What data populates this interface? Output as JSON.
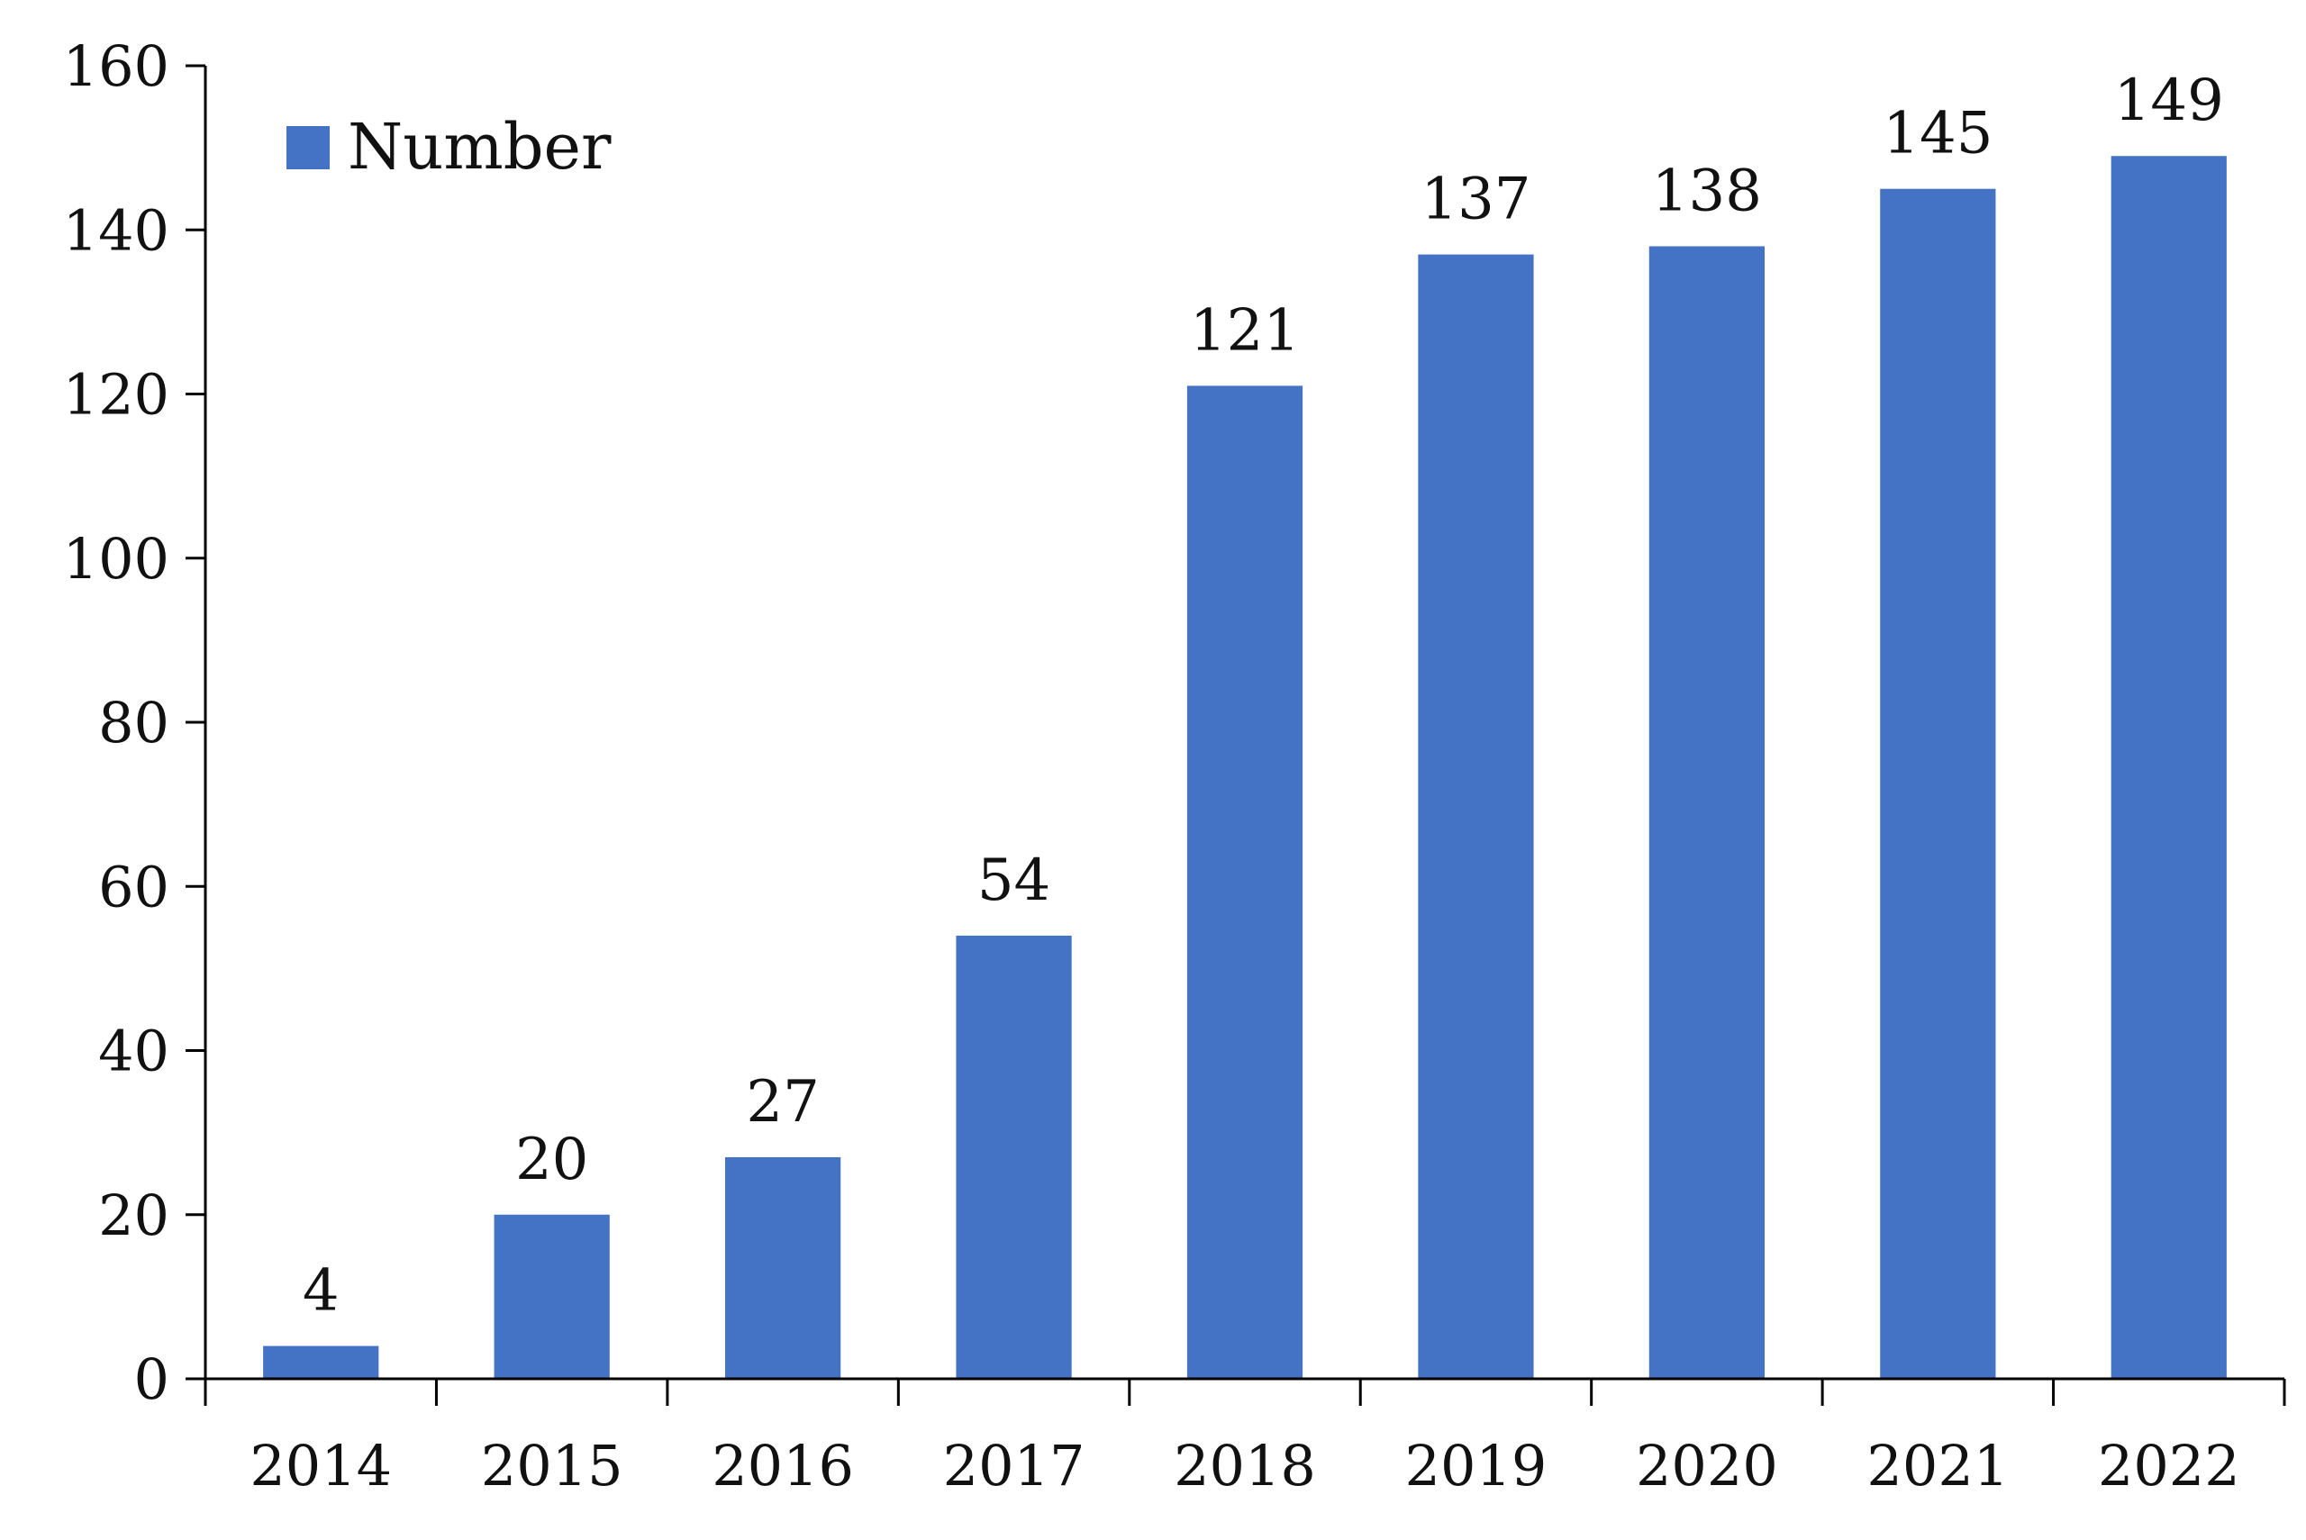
{
  "chart_data": {
    "type": "bar",
    "categories": [
      "2014",
      "2015",
      "2016",
      "2017",
      "2018",
      "2019",
      "2020",
      "2021",
      "2022"
    ],
    "series": [
      {
        "name": "Number",
        "values": [
          4,
          20,
          27,
          54,
          121,
          137,
          138,
          145,
          149
        ]
      }
    ],
    "ylim": [
      0,
      160
    ],
    "yticks": [
      0,
      20,
      40,
      60,
      80,
      100,
      120,
      140,
      160
    ],
    "ytick_labels": [
      "0",
      "20",
      "40",
      "60",
      "80",
      "100",
      "120",
      "140",
      "160"
    ],
    "data_labels": [
      "4",
      "20",
      "27",
      "54",
      "121",
      "137",
      "138",
      "145",
      "149"
    ],
    "legend": {
      "label": "Number",
      "placement": "top-left"
    },
    "bar_color": "#4472C4",
    "grid": false
  }
}
